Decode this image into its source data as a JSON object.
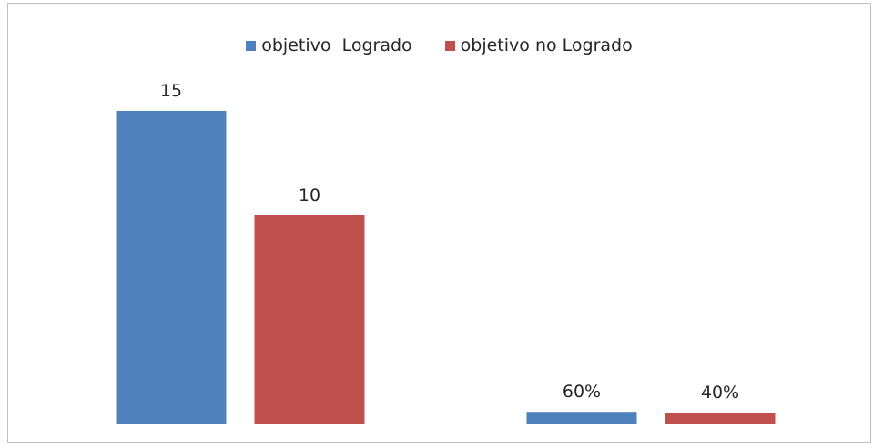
{
  "chart_data": {
    "type": "bar",
    "categories": [
      "",
      ""
    ],
    "series": [
      {
        "name": "objetivo  Logrado",
        "color": "#4f81bd",
        "values": [
          15,
          0.6
        ],
        "data_labels": [
          "15",
          "60%"
        ]
      },
      {
        "name": "objetivo no Logrado",
        "color": "#c0504d",
        "values": [
          10,
          0.4
        ],
        "data_labels": [
          "10",
          "40%"
        ]
      }
    ],
    "ylim": [
      0,
      15
    ],
    "grid": false,
    "legend_position": "top-center",
    "title": "",
    "xlabel": "",
    "ylabel": ""
  }
}
